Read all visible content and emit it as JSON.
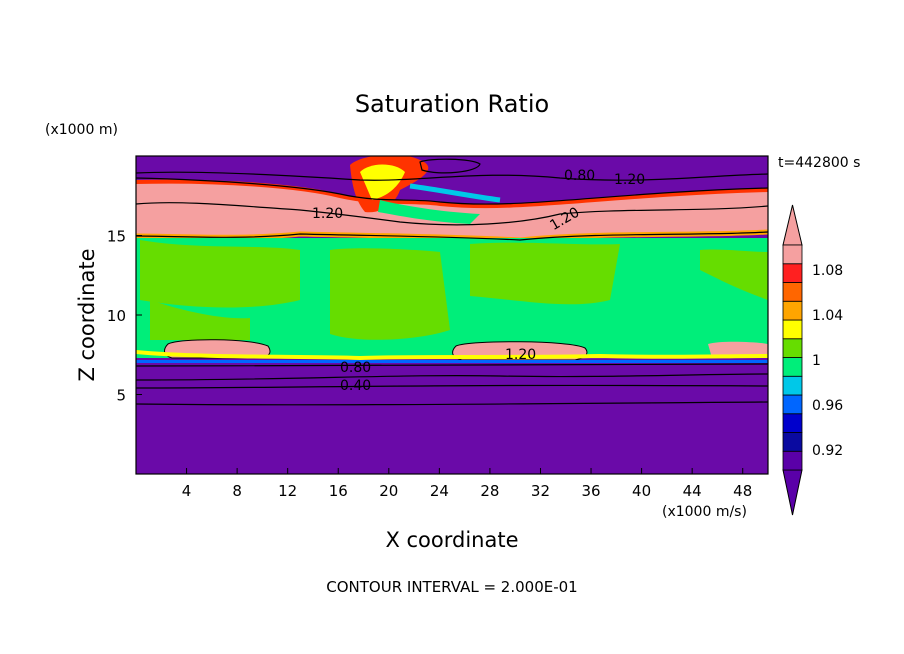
{
  "chart_data": {
    "type": "heatmap",
    "title": "Saturation Ratio",
    "xlabel": "X coordinate",
    "ylabel": "Z coordinate",
    "x_unit": "(x1000 m/s)",
    "y_unit": "(x1000 m)",
    "time_label": "t=442800 s",
    "footer": "CONTOUR INTERVAL = 2.000E-01",
    "xlim": [
      0,
      50
    ],
    "ylim": [
      0,
      20
    ],
    "x_ticks": [
      4,
      8,
      12,
      16,
      20,
      24,
      28,
      32,
      36,
      40,
      44,
      48
    ],
    "y_ticks": [
      5,
      10,
      15
    ],
    "colorbar": {
      "levels": [
        {
          "value": "0.92",
          "color": "#0a0aa0"
        },
        {
          "value": "0.96",
          "color": "#0066ff"
        },
        {
          "value": "1",
          "color": "#00ee7a"
        },
        {
          "value": "1.04",
          "color": "#ffff00"
        },
        {
          "value": "1.08",
          "color": "#ff3300"
        }
      ],
      "swatches": [
        "#5a00a8",
        "#0a0aa0",
        "#0000cc",
        "#0066ff",
        "#00c8e8",
        "#00ee7a",
        "#66dd00",
        "#ffff00",
        "#ffa500",
        "#ff6600",
        "#ff2020",
        "#f5a0a0"
      ]
    },
    "contour_labels": [
      "0.80",
      "1.20",
      "1.20",
      "1.20",
      "1.20",
      "0.80",
      "0.40"
    ],
    "bands_z": [
      {
        "from": 0,
        "to": 7,
        "value": "below 0.92",
        "color": "#6a0aa8"
      },
      {
        "from": 7,
        "to": 15.5,
        "value": "about 1",
        "color": "#00ee7a"
      },
      {
        "from": 15.5,
        "to": 17.8,
        "value": "above 1.08",
        "color": "#f5a0a0"
      },
      {
        "from": 17.8,
        "to": 20,
        "value": "below 0.92",
        "color": "#6a0aa8"
      }
    ]
  }
}
